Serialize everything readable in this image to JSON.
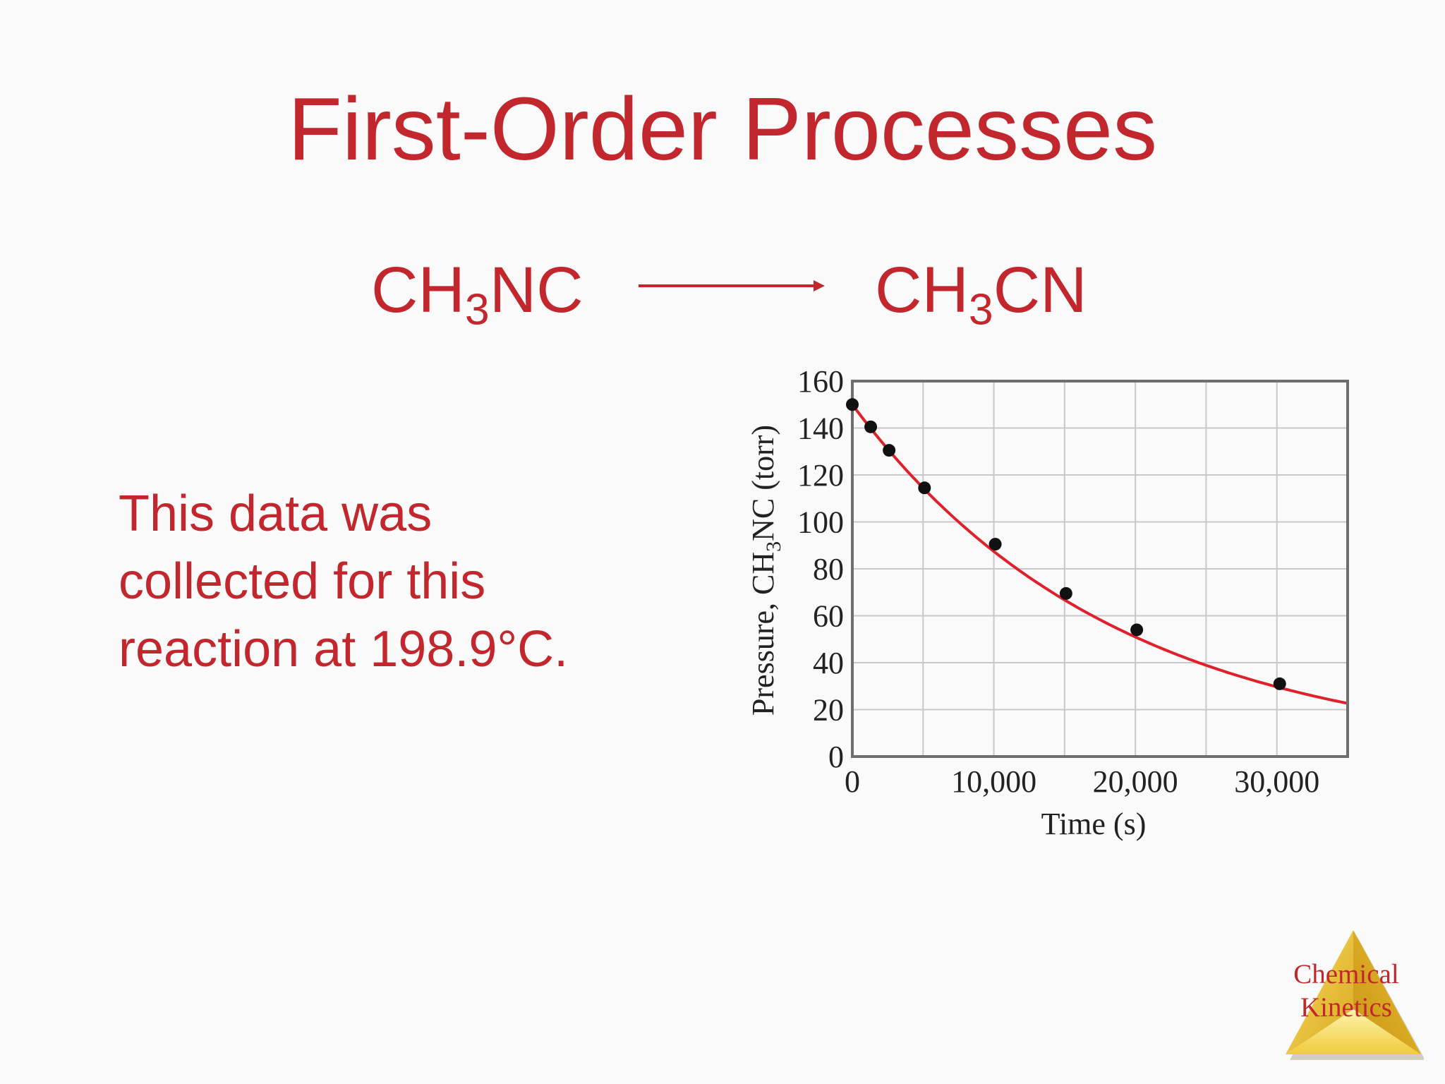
{
  "slide": {
    "title": "First-Order Processes",
    "reactant": {
      "base": "CH",
      "sub": "3",
      "rest": "NC"
    },
    "product": {
      "base": "CH",
      "sub": "3",
      "rest": "CN"
    },
    "description_lines": [
      "This data was",
      "collected for this",
      "reaction at 198.9°C."
    ],
    "logo_lines": [
      "Chemical",
      "Kinetics"
    ],
    "colors": {
      "accent": "#c1272d",
      "curve": "#e0202a",
      "points": "#111111",
      "logo_gold": "#f2d24a"
    }
  },
  "chart_data": {
    "type": "scatter",
    "xlabel": "Time (s)",
    "ylabel_parts": {
      "before": "Pressure, CH",
      "sub": "3",
      "after": "NC (torr)"
    },
    "x_ticks": [
      0,
      10000,
      20000,
      30000
    ],
    "x_tick_labels": [
      "0",
      "10,000",
      "20,000",
      "30,000"
    ],
    "y_ticks": [
      0,
      20,
      40,
      60,
      80,
      100,
      120,
      140,
      160
    ],
    "y_tick_labels": [
      "0",
      "20",
      "40",
      "60",
      "80",
      "100",
      "120",
      "140",
      "160"
    ],
    "xlim": [
      0,
      35000
    ],
    "ylim": [
      0,
      160
    ],
    "grid": true,
    "points": [
      {
        "x": 0,
        "y": 150
      },
      {
        "x": 1300,
        "y": 140.5
      },
      {
        "x": 2600,
        "y": 130.5
      },
      {
        "x": 5100,
        "y": 114.5
      },
      {
        "x": 10100,
        "y": 90.5
      },
      {
        "x": 15100,
        "y": 69.5
      },
      {
        "x": 20100,
        "y": 54
      },
      {
        "x": 30200,
        "y": 31
      }
    ],
    "fit_curve": {
      "model": "exponential_decay",
      "y0": 150,
      "k": 5.4e-05
    }
  }
}
